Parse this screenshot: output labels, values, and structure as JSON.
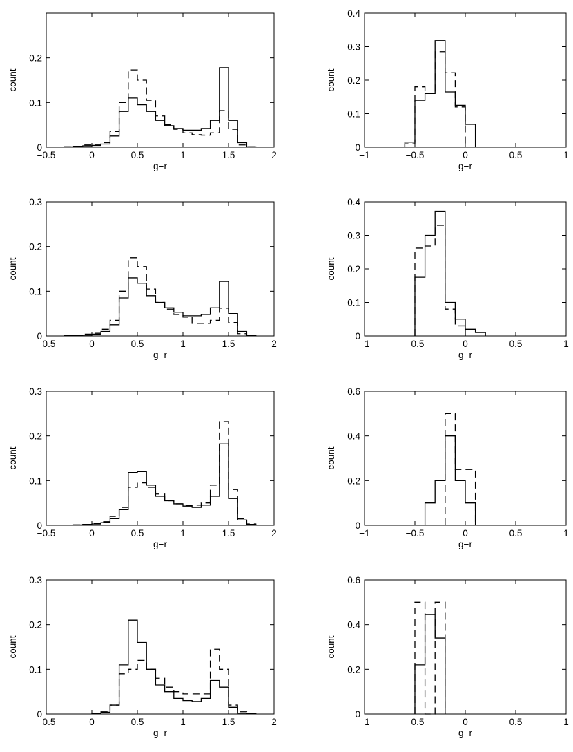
{
  "chart_data": [
    {
      "type": "histogram",
      "xlabel": "g−r",
      "ylabel": "count",
      "xlim": [
        -0.5,
        2
      ],
      "ylim": [
        0,
        0.3
      ],
      "xticks": [
        -0.5,
        0,
        0.5,
        1,
        1.5,
        2
      ],
      "xtick_labels": [
        "−0.5",
        "0",
        "0.5",
        "1",
        "1.5",
        "2"
      ],
      "yticks": [
        0,
        0.1,
        0.2
      ],
      "ytick_labels": [
        "0",
        "0.1",
        "0.2"
      ],
      "series": [
        {
          "name": "solid",
          "style": "solid",
          "x_edges": [
            -0.3,
            -0.2,
            -0.1,
            0,
            0.1,
            0.2,
            0.3,
            0.4,
            0.5,
            0.6,
            0.7,
            0.8,
            0.9,
            1.0,
            1.1,
            1.2,
            1.3,
            1.4,
            1.5,
            1.6,
            1.7,
            1.8
          ],
          "values": [
            0.001,
            0.002,
            0.003,
            0.004,
            0.007,
            0.025,
            0.08,
            0.11,
            0.095,
            0.08,
            0.06,
            0.048,
            0.042,
            0.038,
            0.038,
            0.042,
            0.06,
            0.178,
            0.06,
            0.01,
            0.001
          ]
        },
        {
          "name": "dashed",
          "style": "dashed",
          "x_edges": [
            -0.3,
            -0.2,
            -0.1,
            0,
            0.1,
            0.2,
            0.3,
            0.4,
            0.5,
            0.6,
            0.7,
            0.8,
            0.9,
            1.0,
            1.1,
            1.2,
            1.3,
            1.4,
            1.5,
            1.6,
            1.7,
            1.8
          ],
          "values": [
            0.001,
            0.002,
            0.005,
            0.006,
            0.01,
            0.035,
            0.1,
            0.173,
            0.15,
            0.105,
            0.07,
            0.05,
            0.04,
            0.032,
            0.028,
            0.027,
            0.032,
            0.082,
            0.04,
            0.005,
            0.001
          ]
        }
      ]
    },
    {
      "type": "histogram",
      "xlabel": "g−r",
      "ylabel": "count",
      "xlim": [
        -1,
        1
      ],
      "ylim": [
        0,
        0.4
      ],
      "xticks": [
        -1,
        -0.5,
        0,
        0.5,
        1
      ],
      "xtick_labels": [
        "−1",
        "−0.5",
        "0",
        "0.5",
        "1"
      ],
      "yticks": [
        0,
        0.1,
        0.2,
        0.3,
        0.4
      ],
      "ytick_labels": [
        "0",
        "0.1",
        "0.2",
        "0.3",
        "0.4"
      ],
      "series": [
        {
          "name": "solid",
          "style": "solid",
          "x_edges": [
            -0.6,
            -0.5,
            -0.4,
            -0.3,
            -0.2,
            -0.1,
            0,
            0.1
          ],
          "values": [
            0.015,
            0.14,
            0.16,
            0.318,
            0.165,
            0.125,
            0.068
          ]
        },
        {
          "name": "dashed",
          "style": "dashed",
          "x_edges": [
            -0.6,
            -0.5,
            -0.4,
            -0.3,
            -0.2,
            -0.1,
            0
          ],
          "values": [
            0.01,
            0.18,
            0.16,
            0.285,
            0.222,
            0.12
          ]
        }
      ]
    },
    {
      "type": "histogram",
      "xlabel": "g−r",
      "ylabel": "count",
      "xlim": [
        -0.5,
        2
      ],
      "ylim": [
        0,
        0.3
      ],
      "xticks": [
        -0.5,
        0,
        0.5,
        1,
        1.5,
        2
      ],
      "xtick_labels": [
        "−0.5",
        "0",
        "0.5",
        "1",
        "1.5",
        "2"
      ],
      "yticks": [
        0,
        0.1,
        0.2,
        0.3
      ],
      "ytick_labels": [
        "0",
        "0.1",
        "0.2",
        "0.3"
      ],
      "series": [
        {
          "name": "solid",
          "style": "solid",
          "x_edges": [
            -0.3,
            -0.2,
            -0.1,
            0,
            0.1,
            0.2,
            0.3,
            0.4,
            0.5,
            0.6,
            0.7,
            0.8,
            0.9,
            1.0,
            1.1,
            1.2,
            1.3,
            1.4,
            1.5,
            1.6,
            1.7,
            1.8
          ],
          "values": [
            0.001,
            0.001,
            0.002,
            0.004,
            0.01,
            0.025,
            0.085,
            0.13,
            0.118,
            0.09,
            0.075,
            0.063,
            0.053,
            0.045,
            0.045,
            0.048,
            0.063,
            0.122,
            0.05,
            0.01,
            0.001
          ]
        },
        {
          "name": "dashed",
          "style": "dashed",
          "x_edges": [
            -0.3,
            -0.2,
            -0.1,
            0,
            0.1,
            0.2,
            0.3,
            0.4,
            0.5,
            0.6,
            0.7,
            0.8,
            0.9,
            1.0,
            1.1,
            1.2,
            1.3,
            1.4,
            1.5,
            1.6,
            1.7,
            1.8
          ],
          "values": [
            0.001,
            0.002,
            0.004,
            0.006,
            0.015,
            0.035,
            0.1,
            0.175,
            0.155,
            0.105,
            0.075,
            0.06,
            0.048,
            0.042,
            0.028,
            0.028,
            0.035,
            0.062,
            0.03,
            0.005,
            0.001
          ]
        }
      ]
    },
    {
      "type": "histogram",
      "xlabel": "g−r",
      "ylabel": "count",
      "xlim": [
        -1,
        1
      ],
      "ylim": [
        0,
        0.4
      ],
      "xticks": [
        -1,
        -0.5,
        0,
        0.5,
        1
      ],
      "xtick_labels": [
        "−1",
        "−0.5",
        "0",
        "0.5",
        "1"
      ],
      "yticks": [
        0,
        0.1,
        0.2,
        0.3,
        0.4
      ],
      "ytick_labels": [
        "0",
        "0.1",
        "0.2",
        "0.3",
        "0.4"
      ],
      "series": [
        {
          "name": "solid",
          "style": "solid",
          "x_edges": [
            -0.5,
            -0.4,
            -0.3,
            -0.2,
            -0.1,
            0,
            0.1,
            0.2
          ],
          "values": [
            0.175,
            0.3,
            0.372,
            0.1,
            0.05,
            0.02,
            0.01
          ]
        },
        {
          "name": "dashed",
          "style": "dashed",
          "x_edges": [
            -0.5,
            -0.4,
            -0.3,
            -0.2,
            -0.1,
            0
          ],
          "values": [
            0.262,
            0.268,
            0.33,
            0.08,
            0.03
          ]
        }
      ]
    },
    {
      "type": "histogram",
      "xlabel": "g−r",
      "ylabel": "count",
      "xlim": [
        -0.5,
        2
      ],
      "ylim": [
        0,
        0.3
      ],
      "xticks": [
        -0.5,
        0,
        0.5,
        1,
        1.5,
        2
      ],
      "xtick_labels": [
        "−0.5",
        "0",
        "0.5",
        "1",
        "1.5",
        "2"
      ],
      "yticks": [
        0,
        0.1,
        0.2,
        0.3
      ],
      "ytick_labels": [
        "0",
        "0.1",
        "0.2",
        "0.3"
      ],
      "series": [
        {
          "name": "solid",
          "style": "solid",
          "x_edges": [
            -0.2,
            -0.1,
            0,
            0.1,
            0.2,
            0.3,
            0.4,
            0.5,
            0.6,
            0.7,
            0.8,
            0.9,
            1.0,
            1.1,
            1.2,
            1.3,
            1.4,
            1.5,
            1.6,
            1.7,
            1.8
          ],
          "values": [
            0.001,
            0.002,
            0.003,
            0.006,
            0.015,
            0.035,
            0.118,
            0.12,
            0.09,
            0.065,
            0.055,
            0.048,
            0.043,
            0.04,
            0.045,
            0.065,
            0.182,
            0.06,
            0.012,
            0.002
          ]
        },
        {
          "name": "dashed",
          "style": "dashed",
          "x_edges": [
            -0.2,
            -0.1,
            0,
            0.1,
            0.2,
            0.3,
            0.4,
            0.5,
            0.6,
            0.7,
            0.8,
            0.9,
            1.0,
            1.1,
            1.2,
            1.3,
            1.4,
            1.5,
            1.6,
            1.7,
            1.8
          ],
          "values": [
            0.001,
            0.002,
            0.004,
            0.008,
            0.02,
            0.04,
            0.085,
            0.095,
            0.085,
            0.07,
            0.055,
            0.048,
            0.045,
            0.045,
            0.05,
            0.09,
            0.232,
            0.08,
            0.015,
            0.003
          ]
        }
      ]
    },
    {
      "type": "histogram",
      "xlabel": "g−r",
      "ylabel": "count",
      "xlim": [
        -1,
        1
      ],
      "ylim": [
        0,
        0.6
      ],
      "xticks": [
        -1,
        -0.5,
        0,
        0.5,
        1
      ],
      "xtick_labels": [
        "−1",
        "−0.5",
        "0",
        "0.5",
        "1"
      ],
      "yticks": [
        0,
        0.2,
        0.4,
        0.6
      ],
      "ytick_labels": [
        "0",
        "0.2",
        "0.4",
        "0.6"
      ],
      "series": [
        {
          "name": "solid",
          "style": "solid",
          "x_edges": [
            -0.4,
            -0.3,
            -0.2,
            -0.1,
            0,
            0.1
          ],
          "values": [
            0.1,
            0.2,
            0.4,
            0.2,
            0.1
          ]
        },
        {
          "name": "dashed",
          "style": "dashed",
          "x_edges": [
            -0.2,
            -0.1,
            0,
            0.1
          ],
          "values": [
            0.5,
            0.25,
            0.25
          ]
        }
      ]
    },
    {
      "type": "histogram",
      "xlabel": "g−r",
      "ylabel": "count",
      "xlim": [
        -0.5,
        2
      ],
      "ylim": [
        0,
        0.3
      ],
      "xticks": [
        -0.5,
        0,
        0.5,
        1,
        1.5,
        2
      ],
      "xtick_labels": [
        "−0.5",
        "0",
        "0.5",
        "1",
        "1.5",
        "2"
      ],
      "yticks": [
        0,
        0.1,
        0.2,
        0.3
      ],
      "ytick_labels": [
        "0",
        "0.1",
        "0.2",
        "0.3"
      ],
      "series": [
        {
          "name": "solid",
          "style": "solid",
          "x_edges": [
            0,
            0.1,
            0.2,
            0.3,
            0.4,
            0.5,
            0.6,
            0.7,
            0.8,
            0.9,
            1.0,
            1.1,
            1.2,
            1.3,
            1.4,
            1.5,
            1.6,
            1.7,
            1.8
          ],
          "values": [
            0.001,
            0.004,
            0.02,
            0.11,
            0.21,
            0.16,
            0.1,
            0.065,
            0.05,
            0.035,
            0.03,
            0.028,
            0.035,
            0.075,
            0.06,
            0.015,
            0.002,
            0.001
          ]
        },
        {
          "name": "dashed",
          "style": "dashed",
          "x_edges": [
            0,
            0.1,
            0.2,
            0.3,
            0.4,
            0.5,
            0.6,
            0.7,
            0.8,
            0.9,
            1.0,
            1.1,
            1.2,
            1.3,
            1.4,
            1.5,
            1.6,
            1.7,
            1.8
          ],
          "values": [
            0.002,
            0.005,
            0.02,
            0.09,
            0.1,
            0.12,
            0.1,
            0.08,
            0.06,
            0.05,
            0.045,
            0.045,
            0.045,
            0.145,
            0.1,
            0.02,
            0.005,
            0.001
          ]
        }
      ]
    },
    {
      "type": "histogram",
      "xlabel": "g−r",
      "ylabel": "count",
      "xlim": [
        -1,
        1
      ],
      "ylim": [
        0,
        0.6
      ],
      "xticks": [
        -1,
        -0.5,
        0,
        0.5,
        1
      ],
      "xtick_labels": [
        "−1",
        "−0.5",
        "0",
        "0.5",
        "1"
      ],
      "yticks": [
        0,
        0.2,
        0.4,
        0.6
      ],
      "ytick_labels": [
        "0",
        "0.2",
        "0.4",
        "0.6"
      ],
      "series": [
        {
          "name": "solid",
          "style": "solid",
          "x_edges": [
            -0.5,
            -0.4,
            -0.3,
            -0.2
          ],
          "values": [
            0.22,
            0.445,
            0.34
          ]
        },
        {
          "name": "dashed",
          "style": "dashed",
          "x_edges": [
            -0.5,
            -0.4,
            -0.3,
            -0.2
          ],
          "values": [
            0.5,
            0.0,
            0.5
          ]
        }
      ]
    }
  ]
}
